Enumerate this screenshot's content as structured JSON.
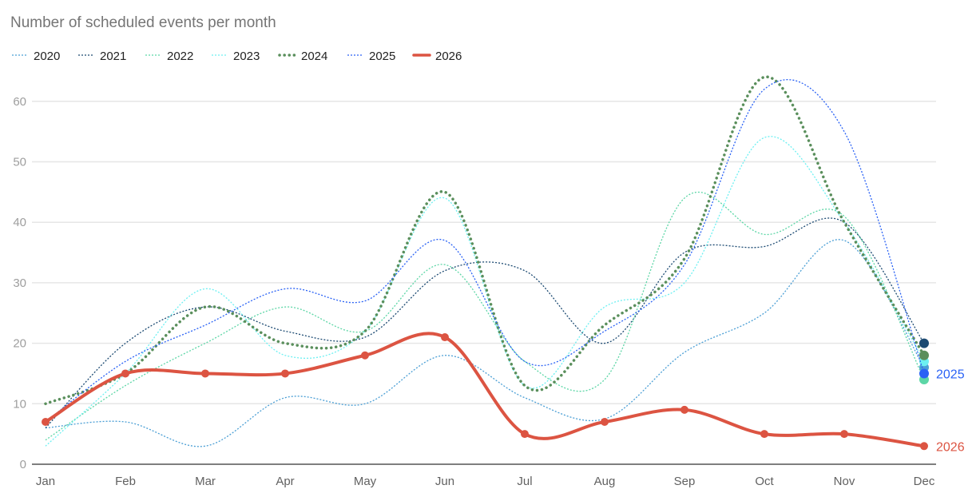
{
  "chart_data": {
    "type": "line",
    "title": "Number of scheduled events per month",
    "xlabel": "",
    "ylabel": "",
    "categories": [
      "Jan",
      "Feb",
      "Mar",
      "Apr",
      "May",
      "Jun",
      "Jul",
      "Aug",
      "Sep",
      "Oct",
      "Nov",
      "Dec"
    ],
    "ylim": [
      0,
      65
    ],
    "yticks": [
      0,
      10,
      20,
      30,
      40,
      50,
      60
    ],
    "grid": true,
    "legend_placement": "top-left",
    "smooth": true,
    "series": [
      {
        "name": "2020",
        "color": "#4b9fd5",
        "style": "dotted",
        "values": [
          6,
          7,
          3,
          11,
          10,
          18,
          11,
          7.5,
          18.5,
          25,
          37,
          16
        ]
      },
      {
        "name": "2021",
        "color": "#1c4a72",
        "style": "dotted",
        "values": [
          6,
          20,
          26,
          22,
          21,
          32,
          32,
          20,
          35,
          36,
          40,
          20
        ]
      },
      {
        "name": "2022",
        "color": "#5cd6a6",
        "style": "dotted",
        "values": [
          4,
          13,
          20,
          26,
          22,
          33,
          17,
          14,
          44,
          38,
          41,
          14
        ]
      },
      {
        "name": "2023",
        "color": "#6df0f2",
        "style": "dotted",
        "values": [
          3,
          15,
          29,
          18,
          22,
          44,
          13,
          26,
          30,
          54,
          40,
          17
        ]
      },
      {
        "name": "2024",
        "color": "#5a8f5c",
        "style": "dotted-thick",
        "values": [
          10,
          15,
          26,
          20,
          22,
          45,
          13,
          23,
          34,
          64,
          40,
          18
        ]
      },
      {
        "name": "2025",
        "color": "#2a62f5",
        "style": "dotted",
        "values": [
          7,
          17,
          23,
          29,
          27,
          37,
          17,
          22,
          33,
          62,
          55,
          15
        ],
        "end_label": "2025"
      },
      {
        "name": "2026",
        "color": "#dc5442",
        "style": "solid-thick",
        "markers": true,
        "values": [
          7,
          15,
          15,
          15,
          18,
          21,
          5,
          7,
          9,
          5,
          5,
          3
        ],
        "end_label": "2026"
      }
    ]
  }
}
